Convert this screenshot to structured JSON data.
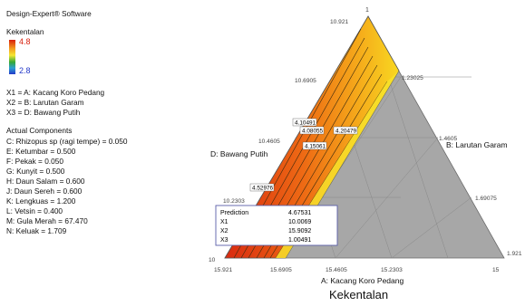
{
  "software": "Design-Expert® Software",
  "response_name": "Kekentalan",
  "legend": {
    "high": "4.8",
    "low": "2.8",
    "colors": [
      "#d81f0c",
      "#f39a1d",
      "#f5e733",
      "#34a835",
      "#2c9fd1",
      "#2338c9"
    ]
  },
  "factors": [
    "X1 = A: Kacang Koro Pedang",
    "X2 = B: Larutan Garam",
    "X3 = D: Bawang Putih"
  ],
  "actual_title": "Actual Components",
  "actual_components": [
    "C: Rhizopus sp (ragi tempe) = 0.050",
    "E: Ketumbar = 0.500",
    "F: Pekak = 0.050",
    "G: Kunyit = 0.500",
    "H: Daun Salam = 0.600",
    "J: Daun Sereh = 0.600",
    "K: Lengkuas = 1.200",
    "L: Vetsin = 0.400",
    "M: Gula Merah = 67.470",
    "N: Keluak = 1.709"
  ],
  "chart_data": {
    "type": "contour",
    "title": "Kekentalan",
    "axes": {
      "A": {
        "label": "A: Kacang Koro Pedang",
        "ticks": [
          "15.921",
          "15.6905",
          "15.4605",
          "15.2303",
          "15"
        ]
      },
      "B": {
        "label": "B: Larutan Garam",
        "ticks": [
          "1.23025",
          "1.4605",
          "1.69075",
          "1.921"
        ]
      },
      "D": {
        "label": "D: Bawang Putih",
        "ticks": [
          "10.921",
          "10.6905",
          "10.4605",
          "10.2303",
          "10"
        ]
      },
      "vertex_labels": {
        "top": "1",
        "bottom_left": "10",
        "bottom_right": "15"
      }
    },
    "contour_labels": [
      "4.10491",
      "4.08055",
      "4.20479",
      "4.15061",
      "4.52976"
    ],
    "prediction": {
      "rows": [
        {
          "label": "Prediction",
          "value": "4.67531"
        },
        {
          "label": "X1",
          "value": "10.0069"
        },
        {
          "label": "X2",
          "value": "15.9092"
        },
        {
          "label": "X3",
          "value": "1.00491"
        }
      ]
    }
  }
}
